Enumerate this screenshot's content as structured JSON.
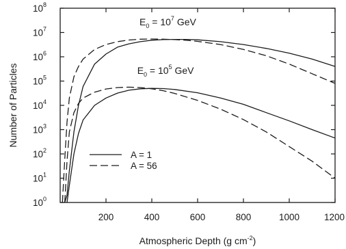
{
  "chart_data": {
    "type": "line",
    "title": "",
    "xlabel": "Atmospheric Depth (g cm",
    "xlabel_sup": "-2",
    "xlabel_end": ")",
    "ylabel": "Number of Particles",
    "xlim": [
      0,
      1200
    ],
    "ylim": [
      1,
      100000000
    ],
    "yscale": "log",
    "grid": false,
    "legend_position": "lower-left",
    "x_ticks": [
      200,
      400,
      600,
      800,
      1000,
      1200
    ],
    "x_tick_labels": [
      "200",
      "400",
      "600",
      "800",
      "1000",
      "1200"
    ],
    "y_ticks": [
      {
        "value": 1,
        "base": "10",
        "exp": "0"
      },
      {
        "value": 10,
        "base": "10",
        "exp": "1"
      },
      {
        "value": 100,
        "base": "10",
        "exp": "2"
      },
      {
        "value": 1000,
        "base": "10",
        "exp": "3"
      },
      {
        "value": 10000,
        "base": "10",
        "exp": "4"
      },
      {
        "value": 100000,
        "base": "10",
        "exp": "5"
      },
      {
        "value": 1000000,
        "base": "10",
        "exp": "6"
      },
      {
        "value": 10000000,
        "base": "10",
        "exp": "7"
      },
      {
        "value": 100000000,
        "base": "10",
        "exp": "8"
      }
    ],
    "legend": [
      {
        "label": "A = 1",
        "style": "solid"
      },
      {
        "label": "A = 56",
        "style": "dashed"
      }
    ],
    "annotations": [
      {
        "prefix": "E",
        "sub": "0",
        "mid": " = 10",
        "sup": "7",
        "suffix": " GeV",
        "x": 470,
        "y": 20000000
      },
      {
        "prefix": "E",
        "sub": "0",
        "mid": " = 10",
        "sup": "5",
        "suffix": " GeV",
        "x": 460,
        "y": 200000
      }
    ],
    "series": [
      {
        "group": "E0 = 10^7 GeV",
        "style": "solid",
        "x": [
          20,
          30,
          40,
          60,
          80,
          100,
          150,
          200,
          250,
          300,
          350,
          400,
          450,
          500,
          550,
          600,
          700,
          800,
          900,
          1000,
          1100,
          1200
        ],
        "y": [
          1,
          2,
          20,
          800,
          10000,
          60000,
          500000,
          1300000,
          2500000,
          3400000,
          4200000,
          4800000,
          5100000,
          5200000,
          5200000,
          5000000,
          4200000,
          3200000,
          2200000,
          1400000,
          800000,
          400000
        ]
      },
      {
        "group": "E0 = 10^7 GeV",
        "style": "dashed",
        "x": [
          10,
          20,
          30,
          40,
          60,
          80,
          100,
          150,
          200,
          250,
          300,
          350,
          400,
          450,
          500,
          550,
          600,
          700,
          800,
          900,
          1000,
          1100,
          1200
        ],
        "y": [
          1,
          60,
          2000,
          20000,
          150000,
          400000,
          800000,
          2000000,
          3200000,
          4200000,
          4900000,
          5300000,
          5400000,
          5300000,
          5100000,
          4800000,
          4300000,
          3200000,
          2000000,
          1100000,
          500000,
          200000,
          80000
        ]
      },
      {
        "group": "E0 = 10^5 GeV",
        "style": "solid",
        "x": [
          30,
          40,
          60,
          80,
          100,
          150,
          200,
          250,
          300,
          350,
          400,
          450,
          500,
          600,
          700,
          800,
          900,
          1000,
          1100,
          1200
        ],
        "y": [
          1,
          5,
          100,
          700,
          2500,
          10000,
          20000,
          32000,
          42000,
          48000,
          50000,
          49000,
          45000,
          33000,
          20000,
          11000,
          5000,
          2300,
          1000,
          450
        ]
      },
      {
        "group": "E0 = 10^5 GeV",
        "style": "dashed",
        "x": [
          20,
          30,
          40,
          60,
          80,
          100,
          150,
          200,
          250,
          300,
          350,
          400,
          450,
          500,
          600,
          700,
          800,
          900,
          1000,
          1100,
          1200
        ],
        "y": [
          1,
          50,
          800,
          5000,
          12000,
          20000,
          35000,
          47000,
          54000,
          56000,
          54000,
          48000,
          40000,
          31000,
          16000,
          7000,
          2600,
          800,
          200,
          50,
          10
        ]
      }
    ]
  }
}
